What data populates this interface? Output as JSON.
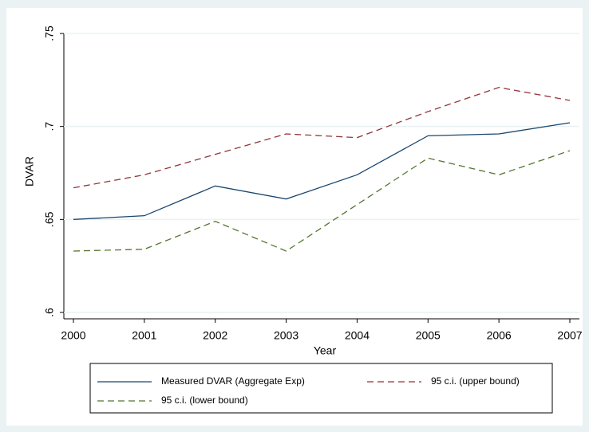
{
  "chart_data": {
    "type": "line",
    "x_label": "Year",
    "y_label": "DVAR",
    "x": [
      2000,
      2001,
      2002,
      2003,
      2004,
      2005,
      2006,
      2007
    ],
    "xlim": [
      2000,
      2007
    ],
    "xticks": [
      2000,
      2001,
      2002,
      2003,
      2004,
      2005,
      2006,
      2007
    ],
    "ylim": [
      0.6,
      0.75
    ],
    "yticks": [
      {
        "value": 0.6,
        "label": ".6"
      },
      {
        "value": 0.65,
        "label": ".65"
      },
      {
        "value": 0.7,
        "label": ".7"
      },
      {
        "value": 0.75,
        "label": ".75"
      }
    ],
    "grid": true,
    "legend": "bottom",
    "series": [
      {
        "name": "Measured DVAR (Aggregate Exp)",
        "color": "#1a476f",
        "dashed": false,
        "values": [
          0.65,
          0.652,
          0.668,
          0.661,
          0.674,
          0.695,
          0.696,
          0.702
        ]
      },
      {
        "name": "95 c.i. (upper bound)",
        "color": "#90353b",
        "dashed": true,
        "values": [
          0.667,
          0.674,
          0.685,
          0.696,
          0.694,
          0.708,
          0.721,
          0.714
        ]
      },
      {
        "name": "95 c.i. (lower bound)",
        "color": "#55752f",
        "dashed": true,
        "values": [
          0.633,
          0.634,
          0.649,
          0.633,
          0.658,
          0.683,
          0.674,
          0.687
        ]
      }
    ]
  }
}
